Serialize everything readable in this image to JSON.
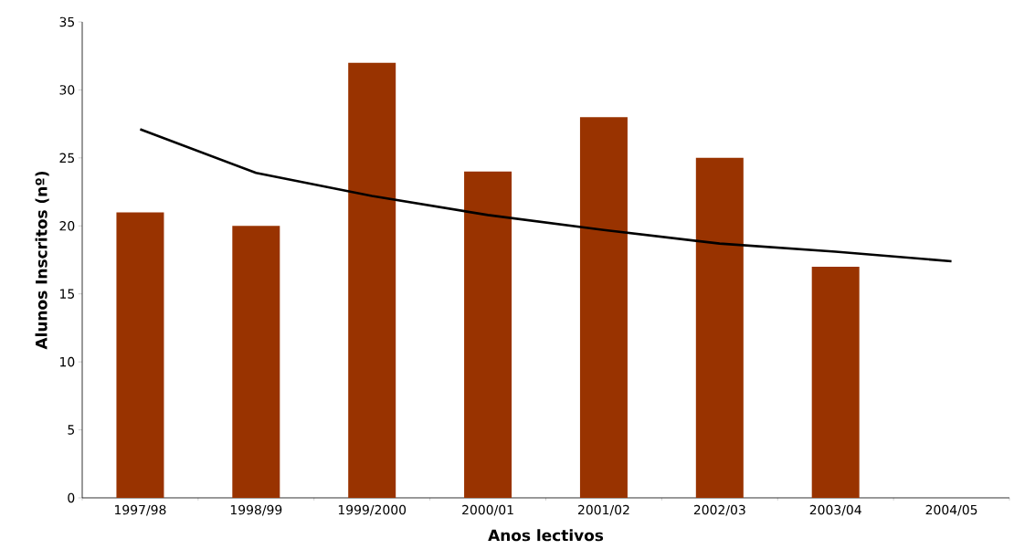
{
  "chart_data": {
    "type": "bar",
    "xlabel": "Anos lectivos",
    "ylabel": "Alunos Inscritos (nº)",
    "categories": [
      "1997/98",
      "1998/99",
      "1999/2000",
      "2000/01",
      "2001/02",
      "2002/03",
      "2003/04",
      "2004/05"
    ],
    "series": [
      {
        "color": "#993300",
        "values": [
          21,
          20,
          32,
          24,
          28,
          25,
          17,
          null
        ]
      },
      {
        "type": "line",
        "color": "#000000",
        "values": [
          27.1,
          23.9,
          22.2,
          20.8,
          19.7,
          18.7,
          18.1,
          17.4
        ]
      }
    ],
    "ylim": [
      0,
      35
    ],
    "yticks": [
      0,
      5,
      10,
      15,
      20,
      25,
      30,
      35
    ]
  }
}
